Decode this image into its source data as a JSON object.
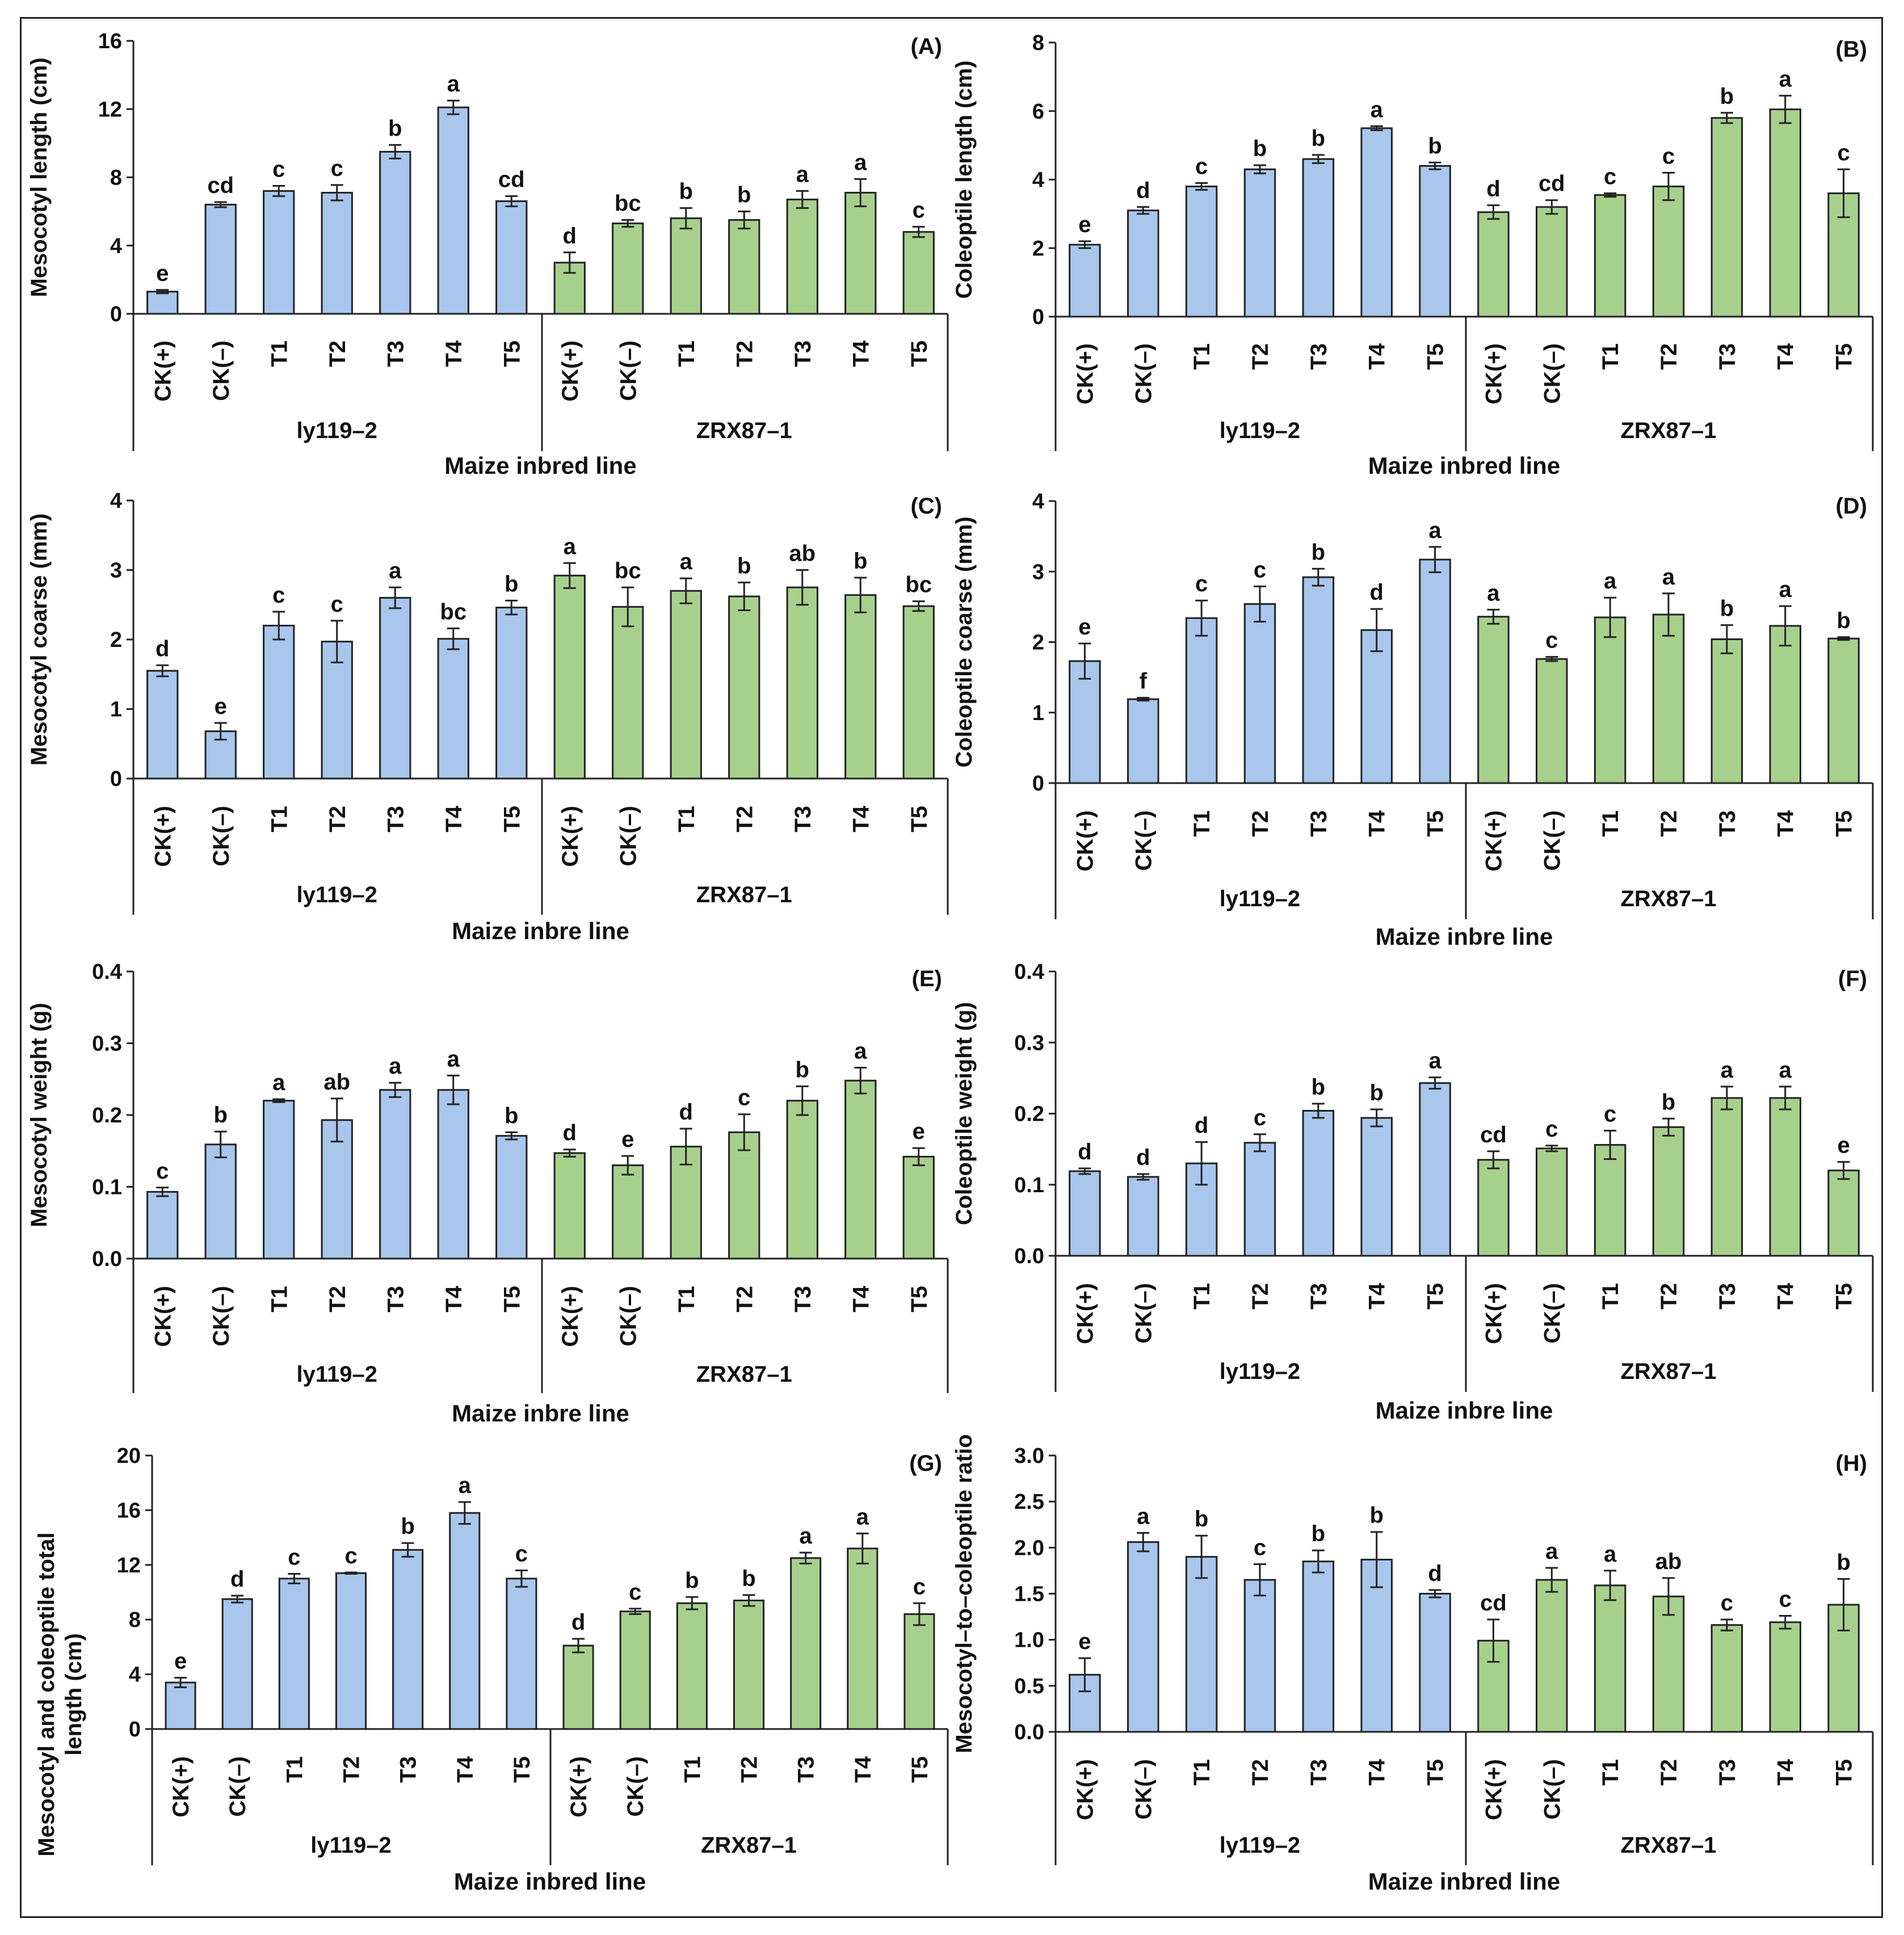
{
  "chart_data": [
    {
      "type": "bar",
      "panel": "(A)",
      "ylabel": "Mesocotyl length (cm)",
      "xlabel": "Maize inbred line",
      "yticks": [
        "0",
        "4",
        "8",
        "12",
        "16"
      ],
      "ylim": [
        0,
        16
      ],
      "groups": [
        {
          "name": "ly119–2",
          "color": "#a9c6ec",
          "categories": [
            "CK(+)",
            "CK(–)",
            "T1",
            "T2",
            "T3",
            "T4",
            "T5"
          ],
          "values": [
            1.3,
            6.4,
            7.2,
            7.1,
            9.5,
            12.1,
            6.6
          ],
          "errors": [
            0.1,
            0.15,
            0.3,
            0.45,
            0.4,
            0.4,
            0.3
          ],
          "letters": [
            "e",
            "cd",
            "c",
            "c",
            "b",
            "a",
            "cd"
          ]
        },
        {
          "name": "ZRX87–1",
          "color": "#a8d08d",
          "categories": [
            "CK(+)",
            "CK(–)",
            "T1",
            "T2",
            "T3",
            "T4",
            "T5"
          ],
          "values": [
            3.0,
            5.3,
            5.6,
            5.5,
            6.7,
            7.1,
            4.8
          ],
          "errors": [
            0.6,
            0.2,
            0.6,
            0.5,
            0.5,
            0.8,
            0.3
          ],
          "letters": [
            "d",
            "bc",
            "b",
            "b",
            "a",
            "a",
            "c"
          ]
        }
      ]
    },
    {
      "type": "bar",
      "panel": "(B)",
      "ylabel": "Coleoptile length (cm)",
      "xlabel": "Maize inbred line",
      "yticks": [
        "0",
        "2",
        "4",
        "6",
        "8"
      ],
      "ylim": [
        0,
        8
      ],
      "groups": [
        {
          "name": "ly119–2",
          "color": "#a9c6ec",
          "categories": [
            "CK(+)",
            "CK(–)",
            "T1",
            "T2",
            "T3",
            "T4",
            "T5"
          ],
          "values": [
            2.1,
            3.1,
            3.8,
            4.3,
            4.6,
            5.5,
            4.4
          ],
          "errors": [
            0.1,
            0.1,
            0.1,
            0.12,
            0.12,
            0.06,
            0.1
          ],
          "letters": [
            "e",
            "d",
            "c",
            "b",
            "b",
            "a",
            "b"
          ]
        },
        {
          "name": "ZRX87–1",
          "color": "#a8d08d",
          "categories": [
            "CK(+)",
            "CK(–)",
            "T1",
            "T2",
            "T3",
            "T4",
            "T5"
          ],
          "values": [
            3.05,
            3.2,
            3.55,
            3.8,
            5.8,
            6.05,
            3.6
          ],
          "errors": [
            0.2,
            0.2,
            0.05,
            0.4,
            0.15,
            0.4,
            0.7
          ],
          "letters": [
            "d",
            "cd",
            "c",
            "c",
            "b",
            "a",
            "c"
          ]
        }
      ]
    },
    {
      "type": "bar",
      "panel": "(C)",
      "ylabel": "Mesocotyl coarse (mm)",
      "xlabel": "Maize inbre line",
      "yticks": [
        "0",
        "1",
        "2",
        "3",
        "4"
      ],
      "ylim": [
        0,
        4
      ],
      "groups": [
        {
          "name": "ly119–2",
          "color": "#a9c6ec",
          "categories": [
            "CK(+)",
            "CK(–)",
            "T1",
            "T2",
            "T3",
            "T4",
            "T5"
          ],
          "values": [
            1.55,
            0.68,
            2.2,
            1.97,
            2.6,
            2.01,
            2.46
          ],
          "errors": [
            0.08,
            0.12,
            0.2,
            0.3,
            0.15,
            0.15,
            0.1
          ],
          "letters": [
            "d",
            "e",
            "c",
            "c",
            "a",
            "bc",
            "b"
          ]
        },
        {
          "name": "ZRX87–1",
          "color": "#a8d08d",
          "categories": [
            "CK(+)",
            "CK(–)",
            "T1",
            "T2",
            "T3",
            "T4",
            "T5"
          ],
          "values": [
            2.92,
            2.47,
            2.7,
            2.62,
            2.75,
            2.64,
            2.48
          ],
          "errors": [
            0.18,
            0.28,
            0.18,
            0.2,
            0.25,
            0.25,
            0.07
          ],
          "letters": [
            "a",
            "bc",
            "a",
            "b",
            "ab",
            "b",
            "bc"
          ]
        }
      ]
    },
    {
      "type": "bar",
      "panel": "(D)",
      "ylabel": "Coleoptile coarse (mm)",
      "xlabel": "Maize inbre line",
      "yticks": [
        "0",
        "1",
        "2",
        "3",
        "4"
      ],
      "ylim": [
        0,
        4
      ],
      "groups": [
        {
          "name": "ly119–2",
          "color": "#a9c6ec",
          "categories": [
            "CK(+)",
            "CK(–)",
            "T1",
            "T2",
            "T3",
            "T4",
            "T5"
          ],
          "values": [
            1.73,
            1.19,
            2.34,
            2.54,
            2.92,
            2.17,
            3.17
          ],
          "errors": [
            0.25,
            0.02,
            0.25,
            0.25,
            0.12,
            0.3,
            0.18
          ],
          "letters": [
            "e",
            "f",
            "c",
            "c",
            "b",
            "d",
            "a"
          ]
        },
        {
          "name": "ZRX87–1",
          "color": "#a8d08d",
          "categories": [
            "CK(+)",
            "CK(–)",
            "T1",
            "T2",
            "T3",
            "T4",
            "T5"
          ],
          "values": [
            2.36,
            1.76,
            2.35,
            2.39,
            2.04,
            2.23,
            2.05
          ],
          "errors": [
            0.1,
            0.03,
            0.28,
            0.3,
            0.2,
            0.28,
            0.02
          ],
          "letters": [
            "a",
            "c",
            "a",
            "a",
            "b",
            "a",
            "b"
          ]
        }
      ]
    },
    {
      "type": "bar",
      "panel": "(E)",
      "ylabel": "Mesocotyl weight (g)",
      "xlabel": "Maize inbre line",
      "yticks": [
        "0.0",
        "0.1",
        "0.2",
        "0.3",
        "0.4"
      ],
      "ylim": [
        0,
        0.4
      ],
      "groups": [
        {
          "name": "ly119–2",
          "color": "#a9c6ec",
          "categories": [
            "CK(+)",
            "CK(–)",
            "T1",
            "T2",
            "T3",
            "T4",
            "T5"
          ],
          "values": [
            0.093,
            0.159,
            0.22,
            0.193,
            0.235,
            0.235,
            0.171
          ],
          "errors": [
            0.006,
            0.018,
            0.002,
            0.03,
            0.01,
            0.02,
            0.005
          ],
          "letters": [
            "c",
            "b",
            "a",
            "ab",
            "a",
            "a",
            "b"
          ]
        },
        {
          "name": "ZRX87–1",
          "color": "#a8d08d",
          "categories": [
            "CK(+)",
            "CK(–)",
            "T1",
            "T2",
            "T3",
            "T4",
            "T5"
          ],
          "values": [
            0.147,
            0.13,
            0.156,
            0.176,
            0.22,
            0.248,
            0.142
          ],
          "errors": [
            0.005,
            0.013,
            0.025,
            0.025,
            0.02,
            0.018,
            0.012
          ],
          "letters": [
            "d",
            "e",
            "d",
            "c",
            "b",
            "a",
            "e"
          ]
        }
      ]
    },
    {
      "type": "bar",
      "panel": "(F)",
      "ylabel": "Coleoptile weight (g)",
      "xlabel": "Maize inbre line",
      "yticks": [
        "0.0",
        "0.1",
        "0.2",
        "0.3",
        "0.4"
      ],
      "ylim": [
        0,
        0.4
      ],
      "groups": [
        {
          "name": "ly119–2",
          "color": "#a9c6ec",
          "categories": [
            "CK(+)",
            "CK(–)",
            "T1",
            "T2",
            "T3",
            "T4",
            "T5"
          ],
          "values": [
            0.119,
            0.111,
            0.13,
            0.159,
            0.204,
            0.194,
            0.243
          ],
          "errors": [
            0.004,
            0.004,
            0.03,
            0.012,
            0.01,
            0.012,
            0.008
          ],
          "letters": [
            "d",
            "d",
            "d",
            "c",
            "b",
            "b",
            "a"
          ]
        },
        {
          "name": "ZRX87–1",
          "color": "#a8d08d",
          "categories": [
            "CK(+)",
            "CK(–)",
            "T1",
            "T2",
            "T3",
            "T4",
            "T5"
          ],
          "values": [
            0.135,
            0.151,
            0.156,
            0.181,
            0.222,
            0.222,
            0.12
          ],
          "errors": [
            0.012,
            0.004,
            0.02,
            0.012,
            0.016,
            0.016,
            0.012
          ],
          "letters": [
            "cd",
            "c",
            "c",
            "b",
            "a",
            "a",
            "e"
          ]
        }
      ]
    },
    {
      "type": "bar",
      "panel": "(G)",
      "ylabel": "Mesocotyl and coleoptile total length (cm)",
      "ylabel_lines": [
        "Mesocotyl and coleoptile total",
        "length (cm)"
      ],
      "xlabel": "Maize inbred line",
      "yticks": [
        "0",
        "4",
        "8",
        "12",
        "16",
        "20"
      ],
      "ylim": [
        0,
        20
      ],
      "groups": [
        {
          "name": "ly119–2",
          "color": "#a9c6ec",
          "categories": [
            "CK(+)",
            "CK(–)",
            "T1",
            "T2",
            "T3",
            "T4",
            "T5"
          ],
          "values": [
            3.4,
            9.5,
            11.0,
            11.4,
            13.1,
            15.8,
            11.0
          ],
          "errors": [
            0.35,
            0.25,
            0.35,
            0.05,
            0.5,
            0.8,
            0.6
          ],
          "letters": [
            "e",
            "d",
            "c",
            "c",
            "b",
            "a",
            "c"
          ]
        },
        {
          "name": "ZRX87–1",
          "color": "#a8d08d",
          "categories": [
            "CK(+)",
            "CK(–)",
            "T1",
            "T2",
            "T3",
            "T4",
            "T5"
          ],
          "values": [
            6.1,
            8.6,
            9.2,
            9.4,
            12.5,
            13.2,
            8.4
          ],
          "errors": [
            0.5,
            0.2,
            0.45,
            0.4,
            0.4,
            1.1,
            0.8
          ],
          "letters": [
            "d",
            "c",
            "b",
            "b",
            "a",
            "a",
            "c"
          ]
        }
      ]
    },
    {
      "type": "bar",
      "panel": "(H)",
      "ylabel": "Mesocotyl–to–coleoptile ratio",
      "xlabel": "Maize inbred line",
      "yticks": [
        "0.0",
        "0.5",
        "1.0",
        "1.5",
        "2.0",
        "2.5",
        "3.0"
      ],
      "ylim": [
        0,
        3
      ],
      "groups": [
        {
          "name": "ly119–2",
          "color": "#a9c6ec",
          "categories": [
            "CK(+)",
            "CK(–)",
            "T1",
            "T2",
            "T3",
            "T4",
            "T5"
          ],
          "values": [
            0.62,
            2.06,
            1.9,
            1.65,
            1.85,
            1.87,
            1.5
          ],
          "errors": [
            0.18,
            0.1,
            0.23,
            0.17,
            0.12,
            0.3,
            0.04
          ],
          "letters": [
            "e",
            "a",
            "b",
            "c",
            "b",
            "b",
            "d"
          ]
        },
        {
          "name": "ZRX87–1",
          "color": "#a8d08d",
          "categories": [
            "CK(+)",
            "CK(–)",
            "T1",
            "T2",
            "T3",
            "T4",
            "T5"
          ],
          "values": [
            0.99,
            1.65,
            1.59,
            1.47,
            1.16,
            1.19,
            1.38
          ],
          "errors": [
            0.23,
            0.13,
            0.16,
            0.2,
            0.06,
            0.07,
            0.28
          ],
          "letters": [
            "cd",
            "a",
            "a",
            "ab",
            "c",
            "c",
            "b"
          ]
        }
      ]
    }
  ]
}
